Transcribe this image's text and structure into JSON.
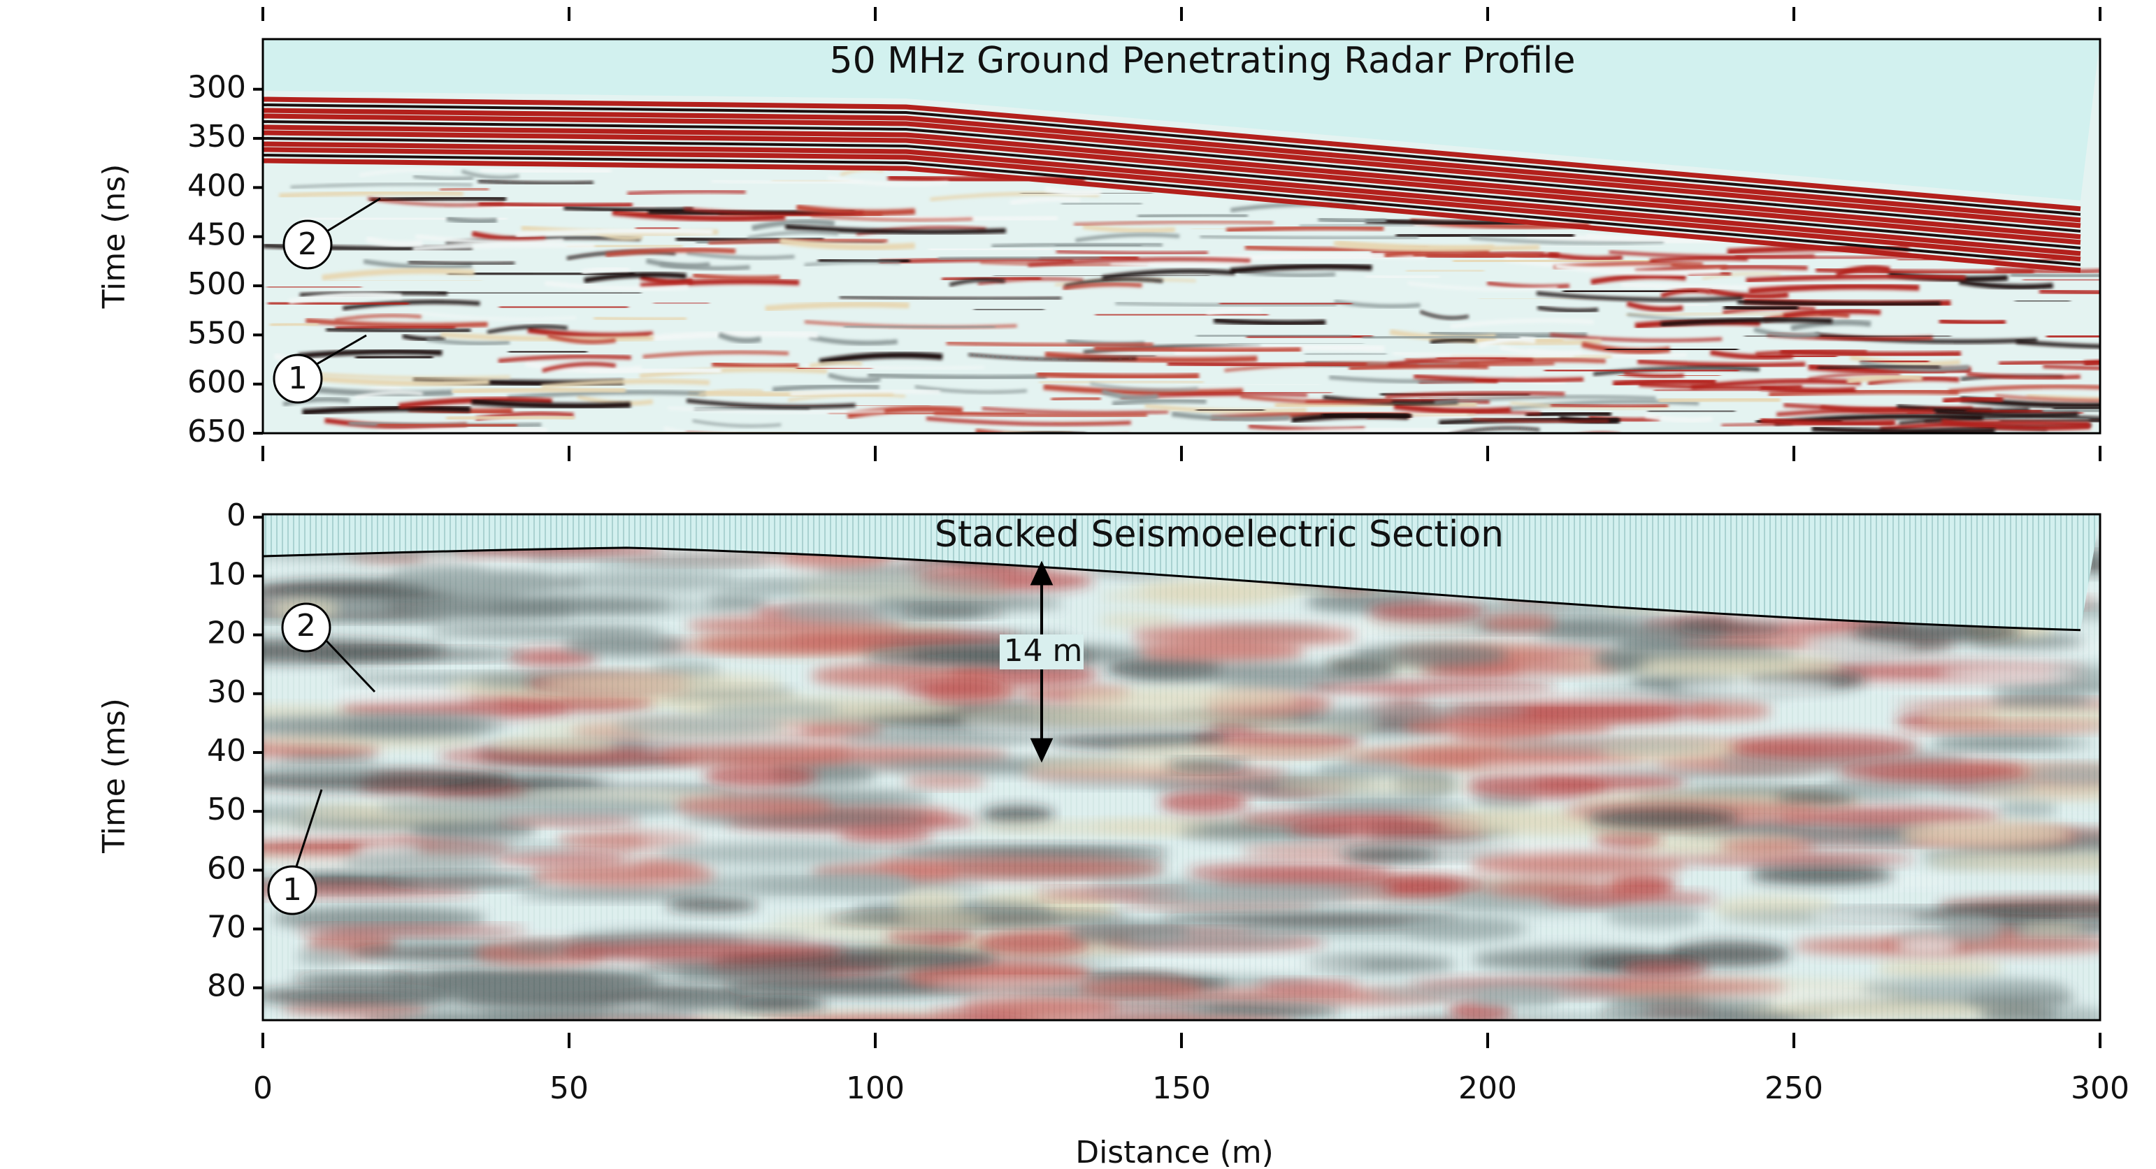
{
  "chart_data": [
    {
      "type": "radargram",
      "title": "50 MHz Ground Penetrating Radar Profile",
      "ylabel": "Time (ns)",
      "xlim": [
        0,
        300
      ],
      "xticks": [
        0,
        50,
        100,
        150,
        200,
        250,
        300
      ],
      "x_tick_labels": false,
      "ylim": [
        650,
        249
      ],
      "yticks": [
        300,
        350,
        400,
        450,
        500,
        550,
        600,
        650
      ],
      "annotations": [
        "2",
        "1"
      ]
    },
    {
      "type": "radargram",
      "title": "Stacked Seismoelectric Section",
      "xlabel": "Distance (m)",
      "ylabel": "Time (ms)",
      "xlim": [
        0,
        300
      ],
      "xticks": [
        0,
        50,
        100,
        150,
        200,
        250,
        300
      ],
      "x_tick_labels": true,
      "ylim": [
        85.5,
        -0.5
      ],
      "yticks": [
        0,
        10,
        20,
        30,
        40,
        50,
        60,
        70,
        80
      ],
      "annotations": [
        "2",
        "1",
        "14 m"
      ]
    }
  ]
}
